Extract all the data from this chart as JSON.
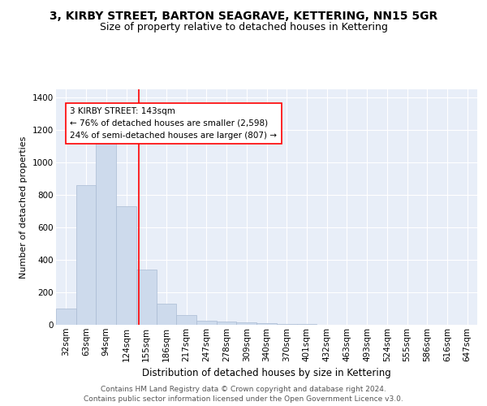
{
  "title": "3, KIRBY STREET, BARTON SEAGRAVE, KETTERING, NN15 5GR",
  "subtitle": "Size of property relative to detached houses in Kettering",
  "xlabel": "Distribution of detached houses by size in Kettering",
  "ylabel": "Number of detached properties",
  "categories": [
    "32sqm",
    "63sqm",
    "94sqm",
    "124sqm",
    "155sqm",
    "186sqm",
    "217sqm",
    "247sqm",
    "278sqm",
    "309sqm",
    "340sqm",
    "370sqm",
    "401sqm",
    "432sqm",
    "463sqm",
    "493sqm",
    "524sqm",
    "555sqm",
    "586sqm",
    "616sqm",
    "647sqm"
  ],
  "values": [
    100,
    860,
    1190,
    730,
    340,
    130,
    60,
    25,
    20,
    15,
    10,
    5,
    5,
    0,
    0,
    0,
    0,
    0,
    0,
    0,
    0
  ],
  "bar_color": "#cddaec",
  "bar_edgecolor": "#aabbd4",
  "vline_color": "red",
  "annotation_text": "3 KIRBY STREET: 143sqm\n← 76% of detached houses are smaller (2,598)\n24% of semi-detached houses are larger (807) →",
  "annotation_box_color": "white",
  "annotation_box_edgecolor": "red",
  "ylim": [
    0,
    1450
  ],
  "yticks": [
    0,
    200,
    400,
    600,
    800,
    1000,
    1200,
    1400
  ],
  "background_color": "#e8eef8",
  "grid_color": "white",
  "footer": "Contains HM Land Registry data © Crown copyright and database right 2024.\nContains public sector information licensed under the Open Government Licence v3.0.",
  "title_fontsize": 10,
  "subtitle_fontsize": 9,
  "xlabel_fontsize": 8.5,
  "ylabel_fontsize": 8,
  "tick_fontsize": 7.5,
  "footer_fontsize": 6.5,
  "annotation_fontsize": 7.5
}
